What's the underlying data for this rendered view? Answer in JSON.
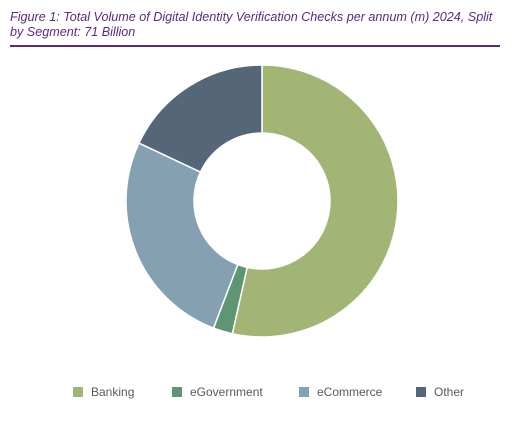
{
  "figure": {
    "title": "Figure 1: Total Volume of Digital Identity Verification Checks per annum (m) 2024, Split by Segment: 71 Billion"
  },
  "chart_data": {
    "type": "pie",
    "donut": true,
    "title": "Figure 1: Total Volume of Digital Identity Verification Checks per annum (m) 2024, Split by Segment: 71 Billion",
    "legend_position": "bottom",
    "slices": [
      {
        "label": "Banking",
        "value": 53.5,
        "color": "#a3b574"
      },
      {
        "label": "eGovernment",
        "value": 2.3,
        "color": "#5e9573"
      },
      {
        "label": "eCommerce",
        "value": 26.2,
        "color": "#84a0b1"
      },
      {
        "label": "Other",
        "value": 18.0,
        "color": "#546677"
      }
    ]
  }
}
